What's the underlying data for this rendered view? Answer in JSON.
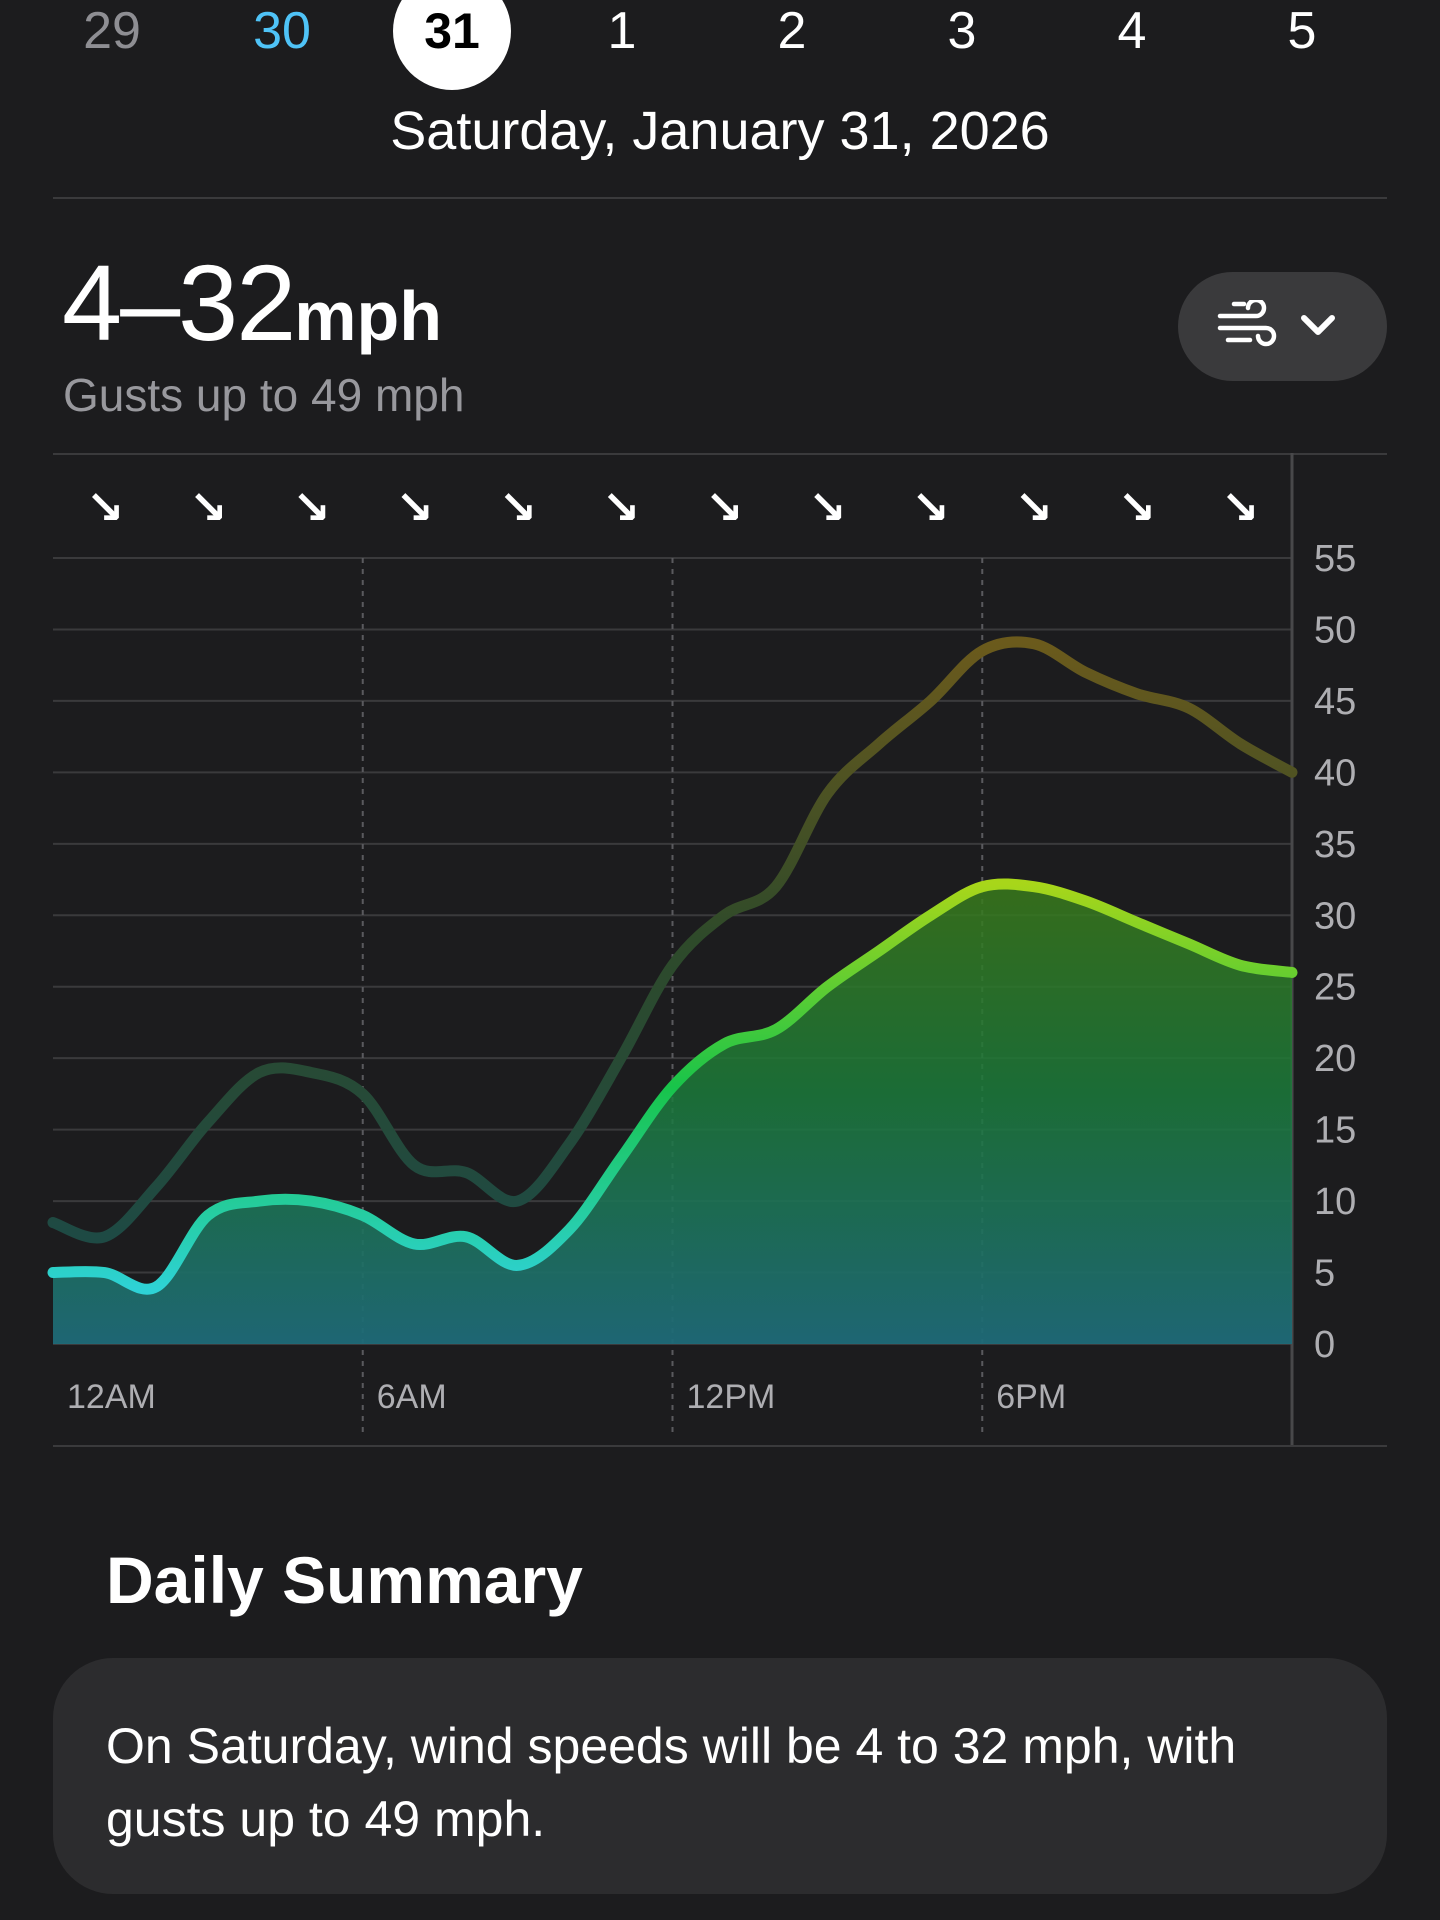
{
  "date_strip": {
    "days": [
      {
        "label": "29",
        "state": "past"
      },
      {
        "label": "30",
        "state": "today"
      },
      {
        "label": "31",
        "state": "selected"
      },
      {
        "label": "1",
        "state": "future"
      },
      {
        "label": "2",
        "state": "future"
      },
      {
        "label": "3",
        "state": "future"
      },
      {
        "label": "4",
        "state": "future"
      },
      {
        "label": "5",
        "state": "future"
      }
    ],
    "selected_date": "Saturday, January 31, 2026"
  },
  "wind": {
    "range": "4–32",
    "unit": "mph",
    "gusts": "Gusts up to 49 mph",
    "picker_icon": "wind-icon",
    "picker_chevron": "chevron-down-icon"
  },
  "chart_data": {
    "type": "area",
    "x_labels": [
      "12AM",
      "6AM",
      "12PM",
      "6PM"
    ],
    "y_ticks": [
      0,
      5,
      10,
      15,
      20,
      25,
      30,
      35,
      40,
      45,
      50,
      55
    ],
    "ylim": [
      0,
      55
    ],
    "direction_arrows": [
      "↘",
      "↘",
      "↘",
      "↘",
      "↘",
      "↘",
      "↘",
      "↘",
      "↘",
      "↘",
      "↘",
      "↘"
    ],
    "x_hours": [
      0,
      1,
      2,
      3,
      4,
      5,
      6,
      7,
      8,
      9,
      10,
      11,
      12,
      13,
      14,
      15,
      16,
      17,
      18,
      19,
      20,
      21,
      22,
      23,
      24
    ],
    "series": [
      {
        "values": [
          5,
          5,
          4,
          9,
          10,
          10,
          9,
          7,
          7.5,
          5.5,
          8,
          13,
          18,
          21,
          22,
          25,
          27.5,
          30,
          32,
          32,
          31,
          29.5,
          28,
          26.5,
          26
        ]
      },
      {
        "values": [
          8.5,
          7.5,
          11,
          15.5,
          19,
          19,
          17.5,
          12.5,
          12,
          10,
          14,
          20,
          26.5,
          30,
          32,
          38.5,
          42,
          45,
          48.5,
          49,
          47,
          45.5,
          44.5,
          42,
          40
        ]
      }
    ],
    "colors": {
      "wind_low": "#2ed2d6",
      "wind_high": "#98d61e",
      "gust": "#6b5c1e",
      "gust_low": "#1f4a3e"
    }
  },
  "summary": {
    "title": "Daily Summary",
    "text": "On Saturday, wind speeds will be 4 to 32 mph, with gusts up to 49 mph."
  }
}
